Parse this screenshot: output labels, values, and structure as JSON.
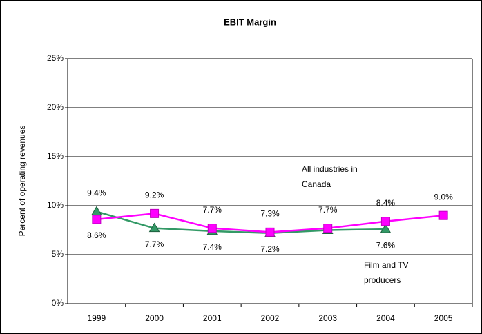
{
  "chart_data": {
    "type": "line",
    "title": "EBIT Margin",
    "y_label": "Percent of operating revenues",
    "categories": [
      "1999",
      "2000",
      "2001",
      "2002",
      "2003",
      "2004",
      "2005"
    ],
    "series": [
      {
        "name": "Film and TV producers",
        "color": "#339966",
        "values": [
          9.4,
          7.7,
          7.4,
          7.2,
          7.5,
          7.6,
          null
        ],
        "value_labels": [
          "9.4%",
          "7.7%",
          "7.4%",
          "7.2%",
          null,
          "7.6%",
          null
        ]
      },
      {
        "name": "All industries in Canada",
        "color": "#ff00ff",
        "values": [
          8.6,
          9.2,
          7.7,
          7.3,
          7.7,
          8.4,
          9.0
        ],
        "value_labels": [
          "8.6%",
          "9.2%",
          "7.7%",
          "7.3%",
          "7.7%",
          "8.4%",
          "9.0%"
        ]
      }
    ],
    "ylim": [
      0,
      25
    ],
    "yticks": [
      {
        "value": 0,
        "label": "0%"
      },
      {
        "value": 5,
        "label": "5%"
      },
      {
        "value": 10,
        "label": "10%"
      },
      {
        "value": 15,
        "label": "15%"
      },
      {
        "value": 20,
        "label": "20%"
      },
      {
        "value": 25,
        "label": "25%"
      }
    ],
    "grid": true
  }
}
